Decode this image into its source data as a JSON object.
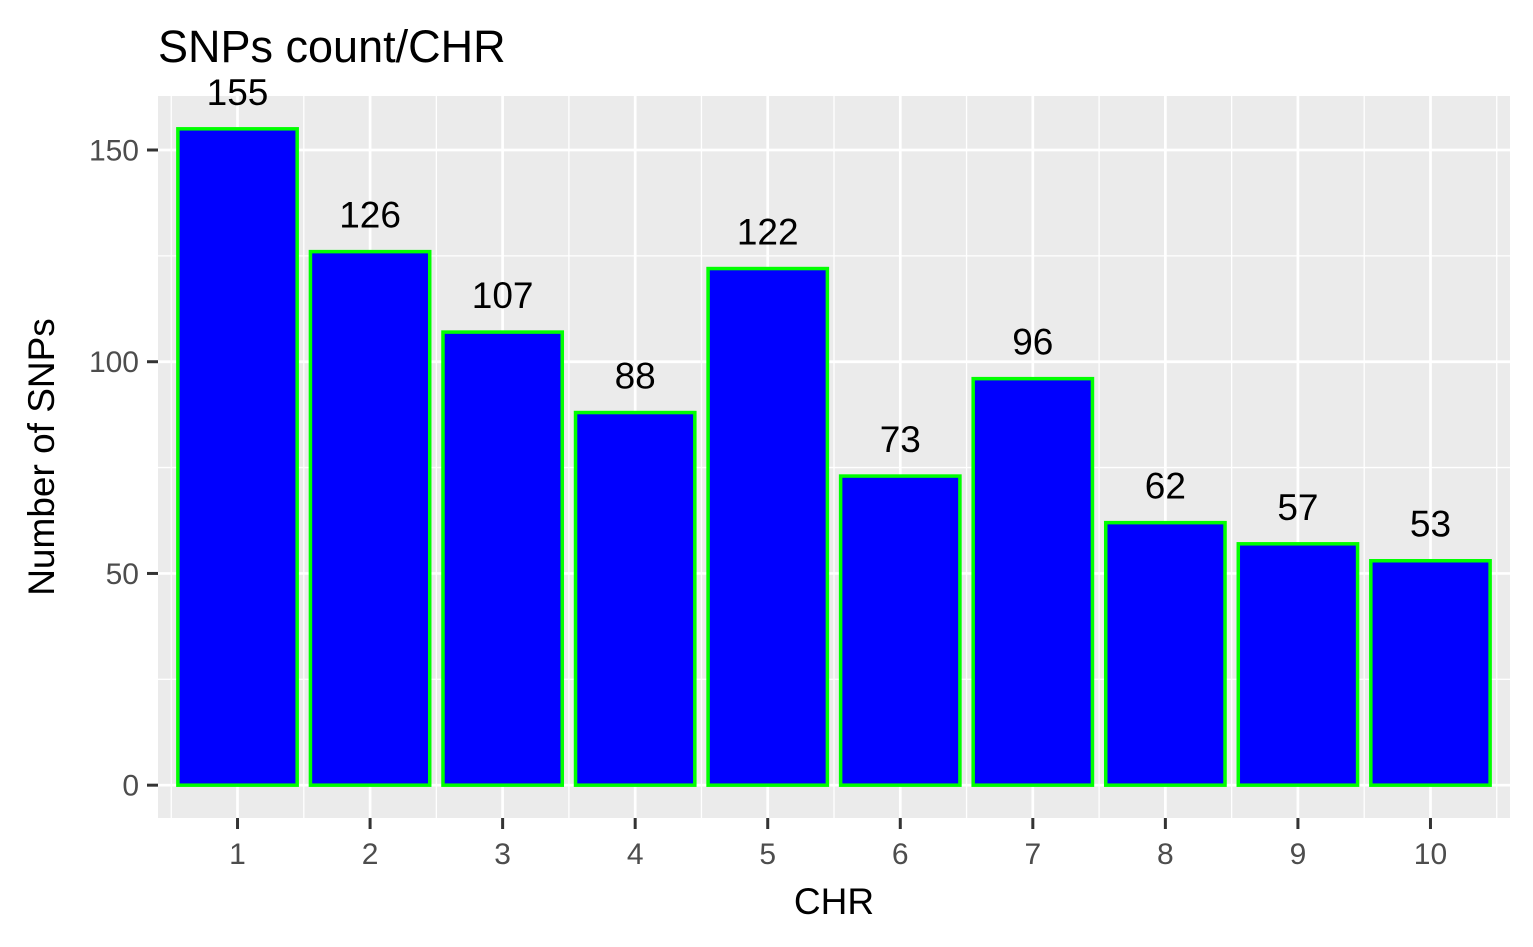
{
  "chart_data": {
    "type": "bar",
    "title": "SNPs count/CHR",
    "xlabel": "CHR",
    "ylabel": "Number of SNPs",
    "categories": [
      "1",
      "2",
      "3",
      "4",
      "5",
      "6",
      "7",
      "8",
      "9",
      "10"
    ],
    "values": [
      155,
      126,
      107,
      88,
      122,
      73,
      96,
      62,
      57,
      53
    ],
    "data_labels": [
      "155",
      "126",
      "107",
      "88",
      "122",
      "73",
      "96",
      "62",
      "57",
      "53"
    ],
    "ylim": [
      -7.75,
      162.75
    ],
    "y_ticks": [
      0,
      50,
      100,
      150
    ],
    "y_tick_labels": [
      "0",
      "50",
      "100",
      "150"
    ],
    "grid": true,
    "legend": "none",
    "colors": {
      "bar_fill": "#0000FF",
      "bar_outline": "#00FF00",
      "panel_background": "#EBEBEB",
      "grid_line": "#FFFFFF",
      "tick_text": "#4D4D4D",
      "axis_tick": "#333333"
    }
  }
}
